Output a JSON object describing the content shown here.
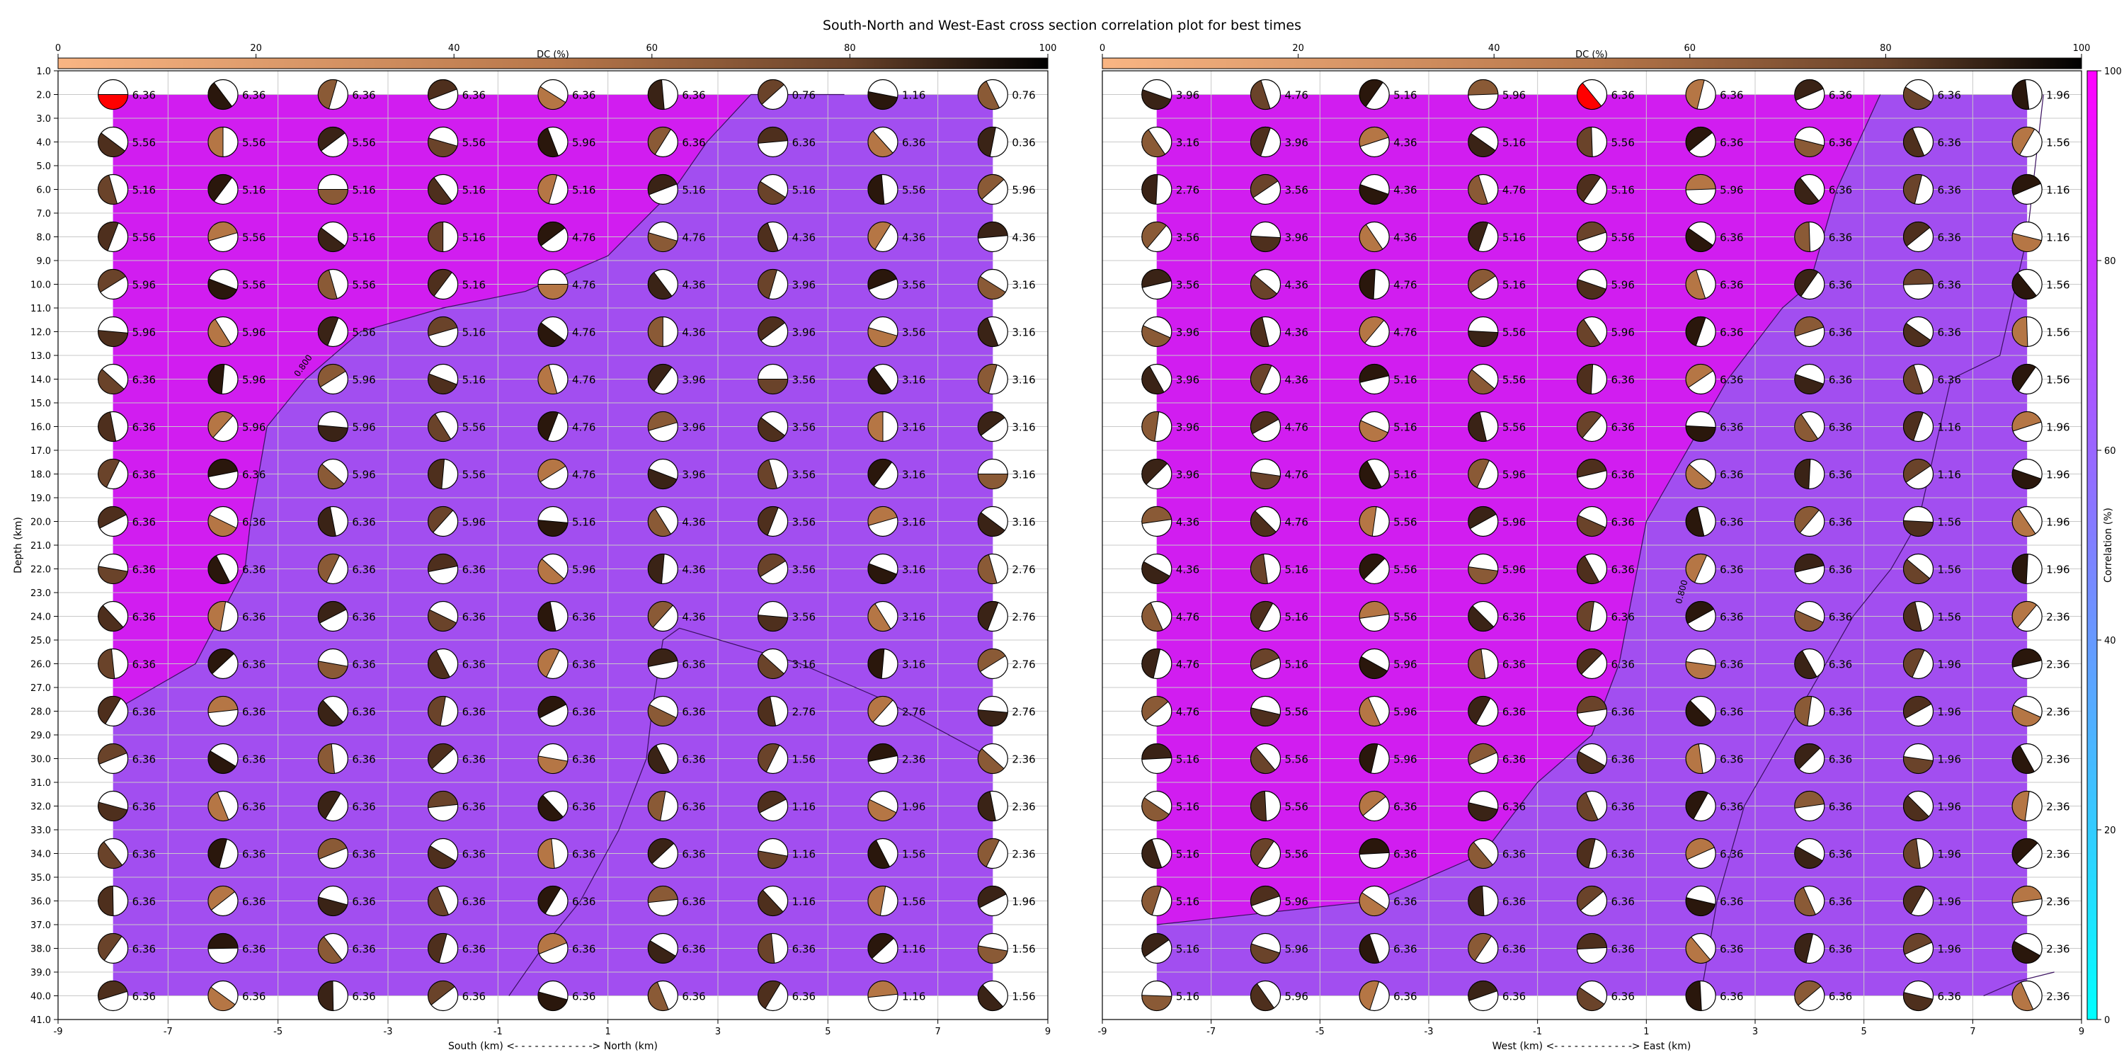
{
  "title": "South-North and West-East cross section correlation plot for best times",
  "dc_colorbar": {
    "label": "DC (%)",
    "ticks": [
      0,
      20,
      40,
      60,
      80,
      100
    ],
    "range": [
      0,
      100
    ]
  },
  "correlation_colorbar": {
    "label": "Correlation (%)",
    "ticks": [
      0,
      20,
      40,
      60,
      80,
      100
    ],
    "range": [
      0,
      100
    ]
  },
  "contour_label": "0.800",
  "chart_data": [
    {
      "type": "heatmap",
      "title": "",
      "xlabel": "South (km) <- - - - - - - - - - - -> North (km)",
      "ylabel": "Depth (km)",
      "xlim": [
        -9,
        9
      ],
      "ylim": [
        41,
        1
      ],
      "xticks": [
        -9,
        -7,
        -5,
        -3,
        -1,
        1,
        3,
        5,
        7,
        9
      ],
      "yticks": [
        1,
        2,
        3,
        4,
        5,
        6,
        7,
        8,
        9,
        10,
        11,
        12,
        13,
        14,
        15,
        16,
        17,
        18,
        19,
        20,
        21,
        22,
        23,
        24,
        25,
        26,
        27,
        28,
        29,
        30,
        31,
        32,
        33,
        34,
        35,
        36,
        37,
        38,
        39,
        40,
        41
      ],
      "x": [
        -8,
        -6,
        -4,
        -2,
        0,
        2,
        4,
        6,
        8
      ],
      "depths": [
        2,
        4,
        6,
        8,
        10,
        12,
        14,
        16,
        18,
        20,
        22,
        24,
        26,
        28,
        30,
        32,
        34,
        36,
        38,
        40
      ],
      "time_labels": [
        [
          "6.36",
          "6.36",
          "6.36",
          "6.36",
          "6.36",
          "6.36",
          "0.76",
          "1.16",
          "0.76"
        ],
        [
          "5.56",
          "5.56",
          "5.56",
          "5.56",
          "5.96",
          "6.36",
          "6.36",
          "6.36",
          "0.36"
        ],
        [
          "5.16",
          "5.16",
          "5.16",
          "5.16",
          "5.16",
          "5.16",
          "5.16",
          "5.56",
          "5.96"
        ],
        [
          "5.56",
          "5.56",
          "5.16",
          "5.16",
          "4.76",
          "4.76",
          "4.36",
          "4.36",
          "4.36"
        ],
        [
          "5.96",
          "5.56",
          "5.56",
          "5.16",
          "4.76",
          "4.36",
          "3.96",
          "3.56",
          "3.16"
        ],
        [
          "5.96",
          "5.96",
          "5.56",
          "5.16",
          "4.76",
          "4.36",
          "3.96",
          "3.56",
          "3.16"
        ],
        [
          "6.36",
          "5.96",
          "5.96",
          "5.16",
          "4.76",
          "3.96",
          "3.56",
          "3.16",
          "3.16"
        ],
        [
          "6.36",
          "5.96",
          "5.96",
          "5.56",
          "4.76",
          "3.96",
          "3.56",
          "3.16",
          "3.16"
        ],
        [
          "6.36",
          "6.36",
          "5.96",
          "5.56",
          "4.76",
          "3.96",
          "3.56",
          "3.16",
          "3.16"
        ],
        [
          "6.36",
          "6.36",
          "6.36",
          "5.96",
          "5.16",
          "4.36",
          "3.56",
          "3.16",
          "3.16"
        ],
        [
          "6.36",
          "6.36",
          "6.36",
          "6.36",
          "5.96",
          "4.36",
          "3.56",
          "3.16",
          "2.76"
        ],
        [
          "6.36",
          "6.36",
          "6.36",
          "6.36",
          "6.36",
          "4.36",
          "3.56",
          "3.16",
          "2.76"
        ],
        [
          "6.36",
          "6.36",
          "6.36",
          "6.36",
          "6.36",
          "6.36",
          "3.16",
          "3.16",
          "2.76"
        ],
        [
          "6.36",
          "6.36",
          "6.36",
          "6.36",
          "6.36",
          "6.36",
          "2.76",
          "2.76",
          "2.76"
        ],
        [
          "6.36",
          "6.36",
          "6.36",
          "6.36",
          "6.36",
          "6.36",
          "1.56",
          "2.36",
          "2.36"
        ],
        [
          "6.36",
          "6.36",
          "6.36",
          "6.36",
          "6.36",
          "6.36",
          "1.16",
          "1.96",
          "2.36"
        ],
        [
          "6.36",
          "6.36",
          "6.36",
          "6.36",
          "6.36",
          "6.36",
          "1.16",
          "1.56",
          "2.36"
        ],
        [
          "6.36",
          "6.36",
          "6.36",
          "6.36",
          "6.36",
          "6.36",
          "1.16",
          "1.56",
          "1.96"
        ],
        [
          "6.36",
          "6.36",
          "6.36",
          "6.36",
          "6.36",
          "6.36",
          "6.36",
          "1.16",
          "1.56"
        ],
        [
          "6.36",
          "6.36",
          "6.36",
          "6.36",
          "6.36",
          "6.36",
          "6.36",
          "1.16",
          "1.56"
        ]
      ],
      "contour_0_800": [
        [
          -8,
          28
        ],
        [
          -6.5,
          26
        ],
        [
          -5.6,
          22
        ],
        [
          -5.5,
          20
        ],
        [
          -5.2,
          16
        ],
        [
          -4.5,
          14
        ],
        [
          -3.5,
          12
        ],
        [
          -2,
          11
        ],
        [
          -0.5,
          10.3
        ],
        [
          1,
          8.8
        ],
        [
          2.2,
          6
        ],
        [
          2.8,
          4
        ],
        [
          3.6,
          2
        ],
        [
          5.3,
          2
        ]
      ],
      "contour_lower": [
        [
          -0.8,
          40
        ],
        [
          -0.2,
          38
        ],
        [
          0.5,
          36
        ],
        [
          1.2,
          33
        ],
        [
          1.7,
          30
        ],
        [
          1.8,
          28
        ],
        [
          2.0,
          25
        ],
        [
          2.3,
          24.5
        ],
        [
          4.5,
          26
        ],
        [
          6,
          27.5
        ],
        [
          8,
          30
        ]
      ]
    },
    {
      "type": "heatmap",
      "title": "",
      "xlabel": "West (km) <- - - - - - - - - - - -> East (km)",
      "ylabel": "",
      "xlim": [
        -9,
        9
      ],
      "ylim": [
        41,
        1
      ],
      "xticks": [
        -9,
        -7,
        -5,
        -3,
        -1,
        1,
        3,
        5,
        7,
        9
      ],
      "yticks": [],
      "x": [
        -8,
        -6,
        -4,
        -2,
        0,
        2,
        4,
        6,
        8
      ],
      "depths": [
        2,
        4,
        6,
        8,
        10,
        12,
        14,
        16,
        18,
        20,
        22,
        24,
        26,
        28,
        30,
        32,
        34,
        36,
        38,
        40
      ],
      "time_labels": [
        [
          "3.96",
          "4.76",
          "5.16",
          "5.96",
          "6.36",
          "6.36",
          "6.36",
          "6.36",
          "1.96"
        ],
        [
          "3.16",
          "3.96",
          "4.36",
          "5.16",
          "5.56",
          "6.36",
          "6.36",
          "6.36",
          "1.56"
        ],
        [
          "2.76",
          "3.56",
          "4.36",
          "4.76",
          "5.16",
          "5.96",
          "6.36",
          "6.36",
          "1.16"
        ],
        [
          "3.56",
          "3.96",
          "4.36",
          "5.16",
          "5.56",
          "6.36",
          "6.36",
          "6.36",
          "1.16"
        ],
        [
          "3.56",
          "4.36",
          "4.76",
          "5.16",
          "5.96",
          "6.36",
          "6.36",
          "6.36",
          "1.56"
        ],
        [
          "3.96",
          "4.36",
          "4.76",
          "5.56",
          "5.96",
          "6.36",
          "6.36",
          "6.36",
          "1.56"
        ],
        [
          "3.96",
          "4.36",
          "5.16",
          "5.56",
          "6.36",
          "6.36",
          "6.36",
          "6.36",
          "1.56"
        ],
        [
          "3.96",
          "4.76",
          "5.16",
          "5.56",
          "6.36",
          "6.36",
          "6.36",
          "1.16",
          "1.96"
        ],
        [
          "3.96",
          "4.76",
          "5.16",
          "5.96",
          "6.36",
          "6.36",
          "6.36",
          "1.16",
          "1.96"
        ],
        [
          "4.36",
          "4.76",
          "5.56",
          "5.96",
          "6.36",
          "6.36",
          "6.36",
          "1.56",
          "1.96"
        ],
        [
          "4.36",
          "5.16",
          "5.56",
          "5.96",
          "6.36",
          "6.36",
          "6.36",
          "1.56",
          "1.96"
        ],
        [
          "4.76",
          "5.16",
          "5.56",
          "6.36",
          "6.36",
          "6.36",
          "6.36",
          "1.56",
          "2.36"
        ],
        [
          "4.76",
          "5.16",
          "5.96",
          "6.36",
          "6.36",
          "6.36",
          "6.36",
          "1.96",
          "2.36"
        ],
        [
          "4.76",
          "5.56",
          "5.96",
          "6.36",
          "6.36",
          "6.36",
          "6.36",
          "1.96",
          "2.36"
        ],
        [
          "5.16",
          "5.56",
          "5.96",
          "6.36",
          "6.36",
          "6.36",
          "6.36",
          "1.96",
          "2.36"
        ],
        [
          "5.16",
          "5.56",
          "6.36",
          "6.36",
          "6.36",
          "6.36",
          "6.36",
          "1.96",
          "2.36"
        ],
        [
          "5.16",
          "5.56",
          "6.36",
          "6.36",
          "6.36",
          "6.36",
          "6.36",
          "1.96",
          "2.36"
        ],
        [
          "5.16",
          "5.96",
          "6.36",
          "6.36",
          "6.36",
          "6.36",
          "6.36",
          "1.96",
          "2.36"
        ],
        [
          "5.16",
          "5.96",
          "6.36",
          "6.36",
          "6.36",
          "6.36",
          "6.36",
          "1.96",
          "2.36"
        ],
        [
          "5.16",
          "5.96",
          "6.36",
          "6.36",
          "6.36",
          "6.36",
          "6.36",
          "6.36",
          "2.36"
        ]
      ],
      "contour_0_800": [
        [
          -8,
          37
        ],
        [
          -4,
          36
        ],
        [
          -2,
          34
        ],
        [
          -1,
          31
        ],
        [
          0,
          29
        ],
        [
          0.5,
          26
        ],
        [
          1,
          20
        ],
        [
          1.5,
          18
        ],
        [
          2.5,
          14
        ],
        [
          3.5,
          11
        ],
        [
          4,
          10
        ],
        [
          4.5,
          6
        ],
        [
          5.3,
          2
        ]
      ],
      "contour_lower": [
        [
          2,
          40
        ],
        [
          2.3,
          36
        ],
        [
          2.8,
          32
        ],
        [
          3.8,
          28
        ],
        [
          4.8,
          24
        ],
        [
          5.5,
          22
        ],
        [
          6,
          20
        ],
        [
          6.2,
          18
        ],
        [
          6.6,
          14
        ],
        [
          7.5,
          13
        ],
        [
          8,
          8
        ],
        [
          8.3,
          2
        ]
      ],
      "contour_corner": [
        [
          7.2,
          40
        ],
        [
          7.8,
          39.4
        ],
        [
          8.5,
          39
        ]
      ]
    }
  ]
}
